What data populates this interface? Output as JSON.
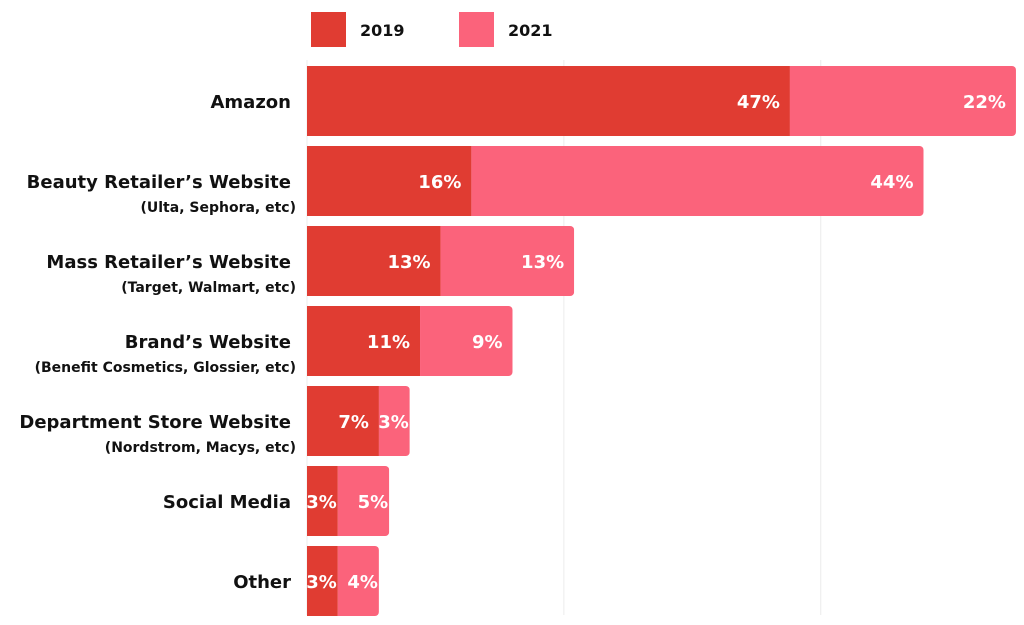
{
  "chart_data": {
    "type": "bar",
    "orientation": "horizontal",
    "stacked": true,
    "categories": [
      {
        "label": "Amazon",
        "sublabel": ""
      },
      {
        "label": "Beauty Retailer’s Website",
        "sublabel": "(Ulta, Sephora, etc)"
      },
      {
        "label": "Mass Retailer’s Website",
        "sublabel": "(Target, Walmart, etc)"
      },
      {
        "label": "Brand’s Website",
        "sublabel": "(Benefit Cosmetics, Glossier, etc)"
      },
      {
        "label": "Department Store Website",
        "sublabel": "(Nordstrom, Macys, etc)"
      },
      {
        "label": "Social Media",
        "sublabel": ""
      },
      {
        "label": "Other",
        "sublabel": ""
      }
    ],
    "series": [
      {
        "name": "2019",
        "color": "#e03c32",
        "values": [
          47,
          16,
          13,
          11,
          7,
          3,
          3
        ]
      },
      {
        "name": "2021",
        "color": "#fb637b",
        "values": [
          22,
          44,
          13,
          9,
          3,
          5,
          4
        ]
      }
    ],
    "value_suffix": "%",
    "xlim": [
      0,
      70
    ],
    "gridlines": [
      25,
      50
    ],
    "grid": true,
    "legend": "top"
  }
}
